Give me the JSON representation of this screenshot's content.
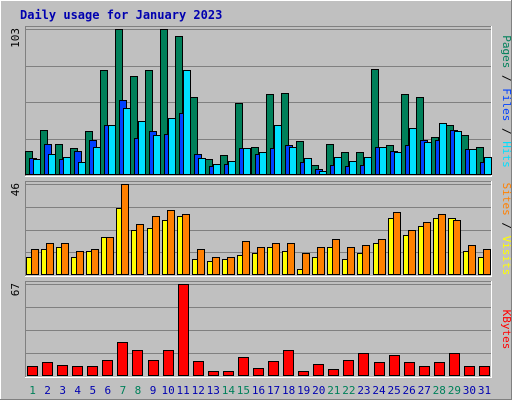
{
  "colors": {
    "background": "#c0c0c0",
    "plot": "#c0c0c0",
    "grid": "#808080",
    "title": "#0000b0",
    "pages": "#00805a",
    "files": "#0040ff",
    "hits": "#00e0ff",
    "sites": "#ff8000",
    "visits": "#ffff00",
    "kbytes": "#ff0000",
    "weekend_day": "#00805a",
    "weekday": "#0000b0",
    "separator": "#000000"
  },
  "chart_data": {
    "title": "Daily usage for January 2023",
    "days": [
      "1",
      "2",
      "3",
      "4",
      "5",
      "6",
      "7",
      "8",
      "9",
      "10",
      "11",
      "12",
      "13",
      "14",
      "15",
      "16",
      "17",
      "18",
      "19",
      "20",
      "21",
      "22",
      "23",
      "24",
      "25",
      "26",
      "27",
      "28",
      "29",
      "30",
      "31"
    ],
    "weekend_days": [
      "1",
      "7",
      "8",
      "14",
      "15",
      "21",
      "22",
      "28",
      "29"
    ],
    "panels": [
      {
        "type": "bar",
        "max_label": "103",
        "ylim": [
          0,
          103
        ],
        "legend": [
          {
            "text": "Pages",
            "color": "#00805a"
          },
          {
            "text": " / ",
            "color": "#000000"
          },
          {
            "text": "Files",
            "color": "#0040ff"
          },
          {
            "text": " / ",
            "color": "#000000"
          },
          {
            "text": "Hits",
            "color": "#00e0ff"
          }
        ],
        "series": [
          {
            "name": "Pages",
            "color": "#00805a",
            "values": [
              17,
              32,
              22,
              19,
              31,
              74,
              103,
              70,
              74,
              103,
              98,
              55,
              11,
              14,
              51,
              20,
              57,
              58,
              24,
              7,
              22,
              16,
              16,
              75,
              21,
              57,
              55,
              27,
              35,
              28,
              20
            ]
          },
          {
            "name": "Files",
            "color": "#0040ff",
            "values": [
              12,
              22,
              11,
              17,
              25,
              35,
              53,
              26,
              31,
              29,
              44,
              15,
              6,
              8,
              19,
              15,
              19,
              21,
              9,
              4,
              7,
              6,
              7,
              20,
              17,
              21,
              25,
              25,
              32,
              18,
              9
            ]
          },
          {
            "name": "Hits",
            "color": "#00e0ff",
            "values": [
              11,
              15,
              13,
              9,
              20,
              35,
              47,
              38,
              28,
              40,
              74,
              12,
              8,
              10,
              19,
              16,
              35,
              20,
              12,
              3,
              13,
              10,
              13,
              20,
              16,
              33,
              23,
              37,
              31,
              18,
              13
            ]
          }
        ]
      },
      {
        "type": "bar",
        "max_label": "46",
        "ylim": [
          0,
          46
        ],
        "legend": [
          {
            "text": "Sites",
            "color": "#ff8000"
          },
          {
            "text": " / ",
            "color": "#000000"
          },
          {
            "text": "Visits",
            "color": "#ffff00"
          }
        ],
        "series": [
          {
            "name": "Visits",
            "color": "#ffff00",
            "values": [
              9,
              13,
              14,
              9,
              12,
              19,
              34,
              23,
              24,
              28,
              30,
              8,
              7,
              8,
              10,
              11,
              14,
              12,
              3,
              9,
              14,
              8,
              11,
              16,
              29,
              20,
              25,
              29,
              29,
              12,
              9
            ]
          },
          {
            "name": "Sites",
            "color": "#ff8000",
            "values": [
              13,
              16,
              16,
              12,
              13,
              19,
              46,
              26,
              30,
              33,
              31,
              13,
              9,
              9,
              17,
              14,
              16,
              16,
              11,
              14,
              18,
              14,
              15,
              18,
              32,
              23,
              27,
              31,
              28,
              15,
              13
            ]
          }
        ]
      },
      {
        "type": "bar",
        "max_label": "67",
        "ylim": [
          0,
          67
        ],
        "legend": [
          {
            "text": "KBytes",
            "color": "#ff0000"
          }
        ],
        "series": [
          {
            "name": "KBytes",
            "color": "#ff0000",
            "values": [
              7,
              10,
              8,
              7,
              7,
              12,
              25,
              19,
              12,
              19,
              67,
              11,
              4,
              4,
              14,
              6,
              11,
              19,
              4,
              9,
              5,
              12,
              17,
              10,
              15,
              10,
              7,
              10,
              17,
              7,
              7
            ]
          }
        ]
      }
    ]
  }
}
